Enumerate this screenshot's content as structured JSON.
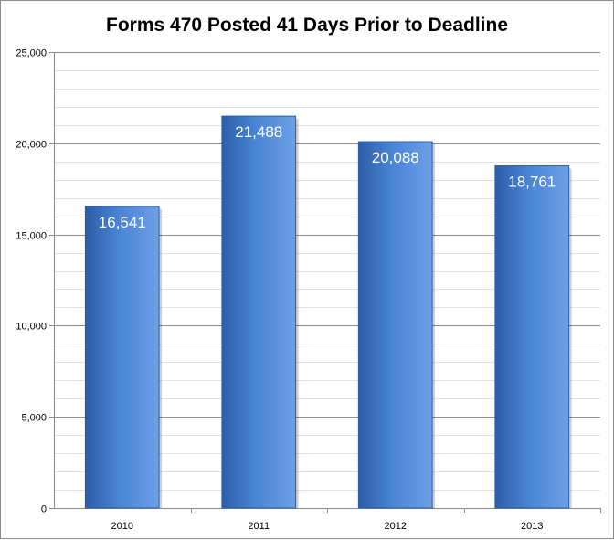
{
  "chart_data": {
    "type": "bar",
    "title": "Forms 470 Posted 41 Days Prior to Deadline",
    "xlabel": "",
    "ylabel": "",
    "categories": [
      "2010",
      "2011",
      "2012",
      "2013"
    ],
    "values": [
      16541,
      21488,
      20088,
      18761
    ],
    "data_labels": [
      "16,541",
      "21,488",
      "20,088",
      "18,761"
    ],
    "y_ticks": [
      0,
      5000,
      10000,
      15000,
      20000,
      25000
    ],
    "y_tick_labels": [
      "0",
      "5,000",
      "10,000",
      "15,000",
      "20,000",
      "25,000"
    ],
    "ylim": [
      0,
      25000
    ],
    "grid": true,
    "minor_grid": true,
    "legend": "none",
    "colors": {
      "bar_dark": "#2c5da8",
      "bar_mid": "#4a84d4",
      "bar_light": "#6da0e6",
      "major_grid": "#8a8a8a",
      "minor_grid": "#e3e3e3",
      "axis": "#8a8a8a"
    }
  }
}
